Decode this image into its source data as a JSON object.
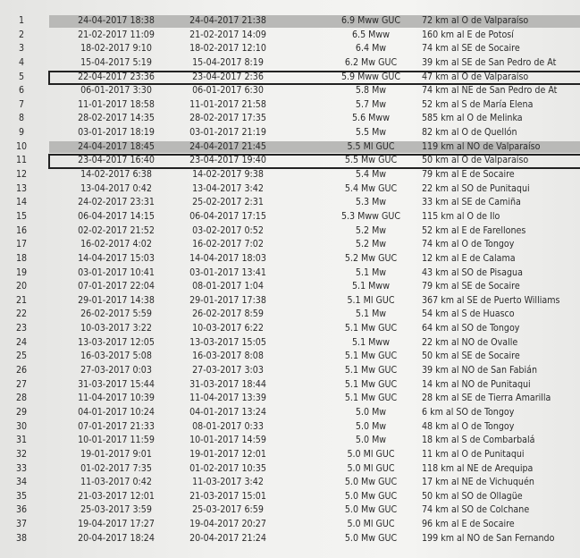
{
  "table": {
    "highlight_color": "#b9b9b7",
    "shaded_rows": [
      1,
      10
    ],
    "boxed_rows": [
      5,
      11
    ],
    "rows": [
      [
        "1",
        "24-04-2017 18:38",
        "24-04-2017 21:38",
        "6.9 Mww GUC",
        "72 km al O de Valparaíso"
      ],
      [
        "2",
        "21-02-2017 11:09",
        "21-02-2017 14:09",
        "6.5 Mww",
        "160 km al E de Potosí"
      ],
      [
        "3",
        "18-02-2017 9:10",
        "18-02-2017 12:10",
        "6.4 Mw",
        "74 km al SE de Socaire"
      ],
      [
        "4",
        "15-04-2017 5:19",
        "15-04-2017 8:19",
        "6.2 Mw GUC",
        "39 km al SE de San Pedro de At"
      ],
      [
        "5",
        "22-04-2017 23:36",
        "23-04-2017 2:36",
        "5.9 Mww GUC",
        "47 km al O de Valparaíso"
      ],
      [
        "6",
        "06-01-2017 3:30",
        "06-01-2017 6:30",
        "5.8 Mw",
        "74 km al NE de San Pedro de At"
      ],
      [
        "7",
        "11-01-2017 18:58",
        "11-01-2017 21:58",
        "5.7 Mw",
        "52 km al S de María Elena"
      ],
      [
        "8",
        "28-02-2017 14:35",
        "28-02-2017 17:35",
        "5.6 Mww",
        "585 km al O de Melinka"
      ],
      [
        "9",
        "03-01-2017 18:19",
        "03-01-2017 21:19",
        "5.5 Mw",
        "82 km al O de Quellón"
      ],
      [
        "10",
        "24-04-2017 18:45",
        "24-04-2017 21:45",
        "5.5 Ml GUC",
        "119 km al NO de Valparaíso"
      ],
      [
        "11",
        "23-04-2017 16:40",
        "23-04-2017 19:40",
        "5.5 Mw GUC",
        "50 km al O de Valparaíso"
      ],
      [
        "12",
        "14-02-2017 6:38",
        "14-02-2017 9:38",
        "5.4 Mw",
        "79 km al E de Socaire"
      ],
      [
        "13",
        "13-04-2017 0:42",
        "13-04-2017 3:42",
        "5.4 Mw GUC",
        "22 km al SO de Punitaqui"
      ],
      [
        "14",
        "24-02-2017 23:31",
        "25-02-2017 2:31",
        "5.3 Mw",
        "33 km al SE de Camiña"
      ],
      [
        "15",
        "06-04-2017 14:15",
        "06-04-2017 17:15",
        "5.3 Mww GUC",
        "115 km al O de Ilo"
      ],
      [
        "16",
        "02-02-2017 21:52",
        "03-02-2017 0:52",
        "5.2 Mw",
        "52 km al E de Farellones"
      ],
      [
        "17",
        "16-02-2017 4:02",
        "16-02-2017 7:02",
        "5.2 Mw",
        "74 km al O de Tongoy"
      ],
      [
        "18",
        "14-04-2017 15:03",
        "14-04-2017 18:03",
        "5.2 Mw GUC",
        "12 km al E de Calama"
      ],
      [
        "19",
        "03-01-2017 10:41",
        "03-01-2017 13:41",
        "5.1 Mw",
        "43 km al SO de Pisagua"
      ],
      [
        "20",
        "07-01-2017 22:04",
        "08-01-2017 1:04",
        "5.1 Mww",
        "79 km al SE de Socaire"
      ],
      [
        "21",
        "29-01-2017 14:38",
        "29-01-2017 17:38",
        "5.1 Ml GUC",
        "367 km al SE de Puerto Williams"
      ],
      [
        "22",
        "26-02-2017 5:59",
        "26-02-2017 8:59",
        "5.1 Mw",
        "54 km al S de Huasco"
      ],
      [
        "23",
        "10-03-2017 3:22",
        "10-03-2017 6:22",
        "5.1 Mw GUC",
        "64 km al SO de Tongoy"
      ],
      [
        "24",
        "13-03-2017 12:05",
        "13-03-2017 15:05",
        "5.1 Mww",
        "22 km al NO de Ovalle"
      ],
      [
        "25",
        "16-03-2017 5:08",
        "16-03-2017 8:08",
        "5.1 Mw GUC",
        "50 km al SE de Socaire"
      ],
      [
        "26",
        "27-03-2017 0:03",
        "27-03-2017 3:03",
        "5.1 Mw GUC",
        "39 km al NO de San Fabián"
      ],
      [
        "27",
        "31-03-2017 15:44",
        "31-03-2017 18:44",
        "5.1 Mw GUC",
        "14 km al NO de Punitaqui"
      ],
      [
        "28",
        "11-04-2017 10:39",
        "11-04-2017 13:39",
        "5.1 Mw GUC",
        "28 km al SE de Tierra Amarilla"
      ],
      [
        "29",
        "04-01-2017 10:24",
        "04-01-2017 13:24",
        "5.0 Mw",
        "6 km al SO de Tongoy"
      ],
      [
        "30",
        "07-01-2017 21:33",
        "08-01-2017 0:33",
        "5.0 Mw",
        "48 km al O de Tongoy"
      ],
      [
        "31",
        "10-01-2017 11:59",
        "10-01-2017 14:59",
        "5.0 Mw",
        "18 km al S de Combarbalá"
      ],
      [
        "32",
        "19-01-2017 9:01",
        "19-01-2017 12:01",
        "5.0 Ml GUC",
        "11 km al O de Punitaqui"
      ],
      [
        "33",
        "01-02-2017 7:35",
        "01-02-2017 10:35",
        "5.0 Ml GUC",
        "118 km al NE de Arequipa"
      ],
      [
        "34",
        "11-03-2017 0:42",
        "11-03-2017 3:42",
        "5.0 Mw GUC",
        "17 km al NE de Vichuquén"
      ],
      [
        "35",
        "21-03-2017 12:01",
        "21-03-2017 15:01",
        "5.0 Mw GUC",
        "50 km al SO de Ollagüe"
      ],
      [
        "36",
        "25-03-2017 3:59",
        "25-03-2017 6:59",
        "5.0 Mw GUC",
        "74 km al SO de Colchane"
      ],
      [
        "37",
        "19-04-2017 17:27",
        "19-04-2017 20:27",
        "5.0 Ml GUC",
        "96 km al E de Socaire"
      ],
      [
        "38",
        "20-04-2017 18:24",
        "20-04-2017 21:24",
        "5.0 Mw GUC",
        "199 km al NO de San Fernando"
      ]
    ]
  }
}
